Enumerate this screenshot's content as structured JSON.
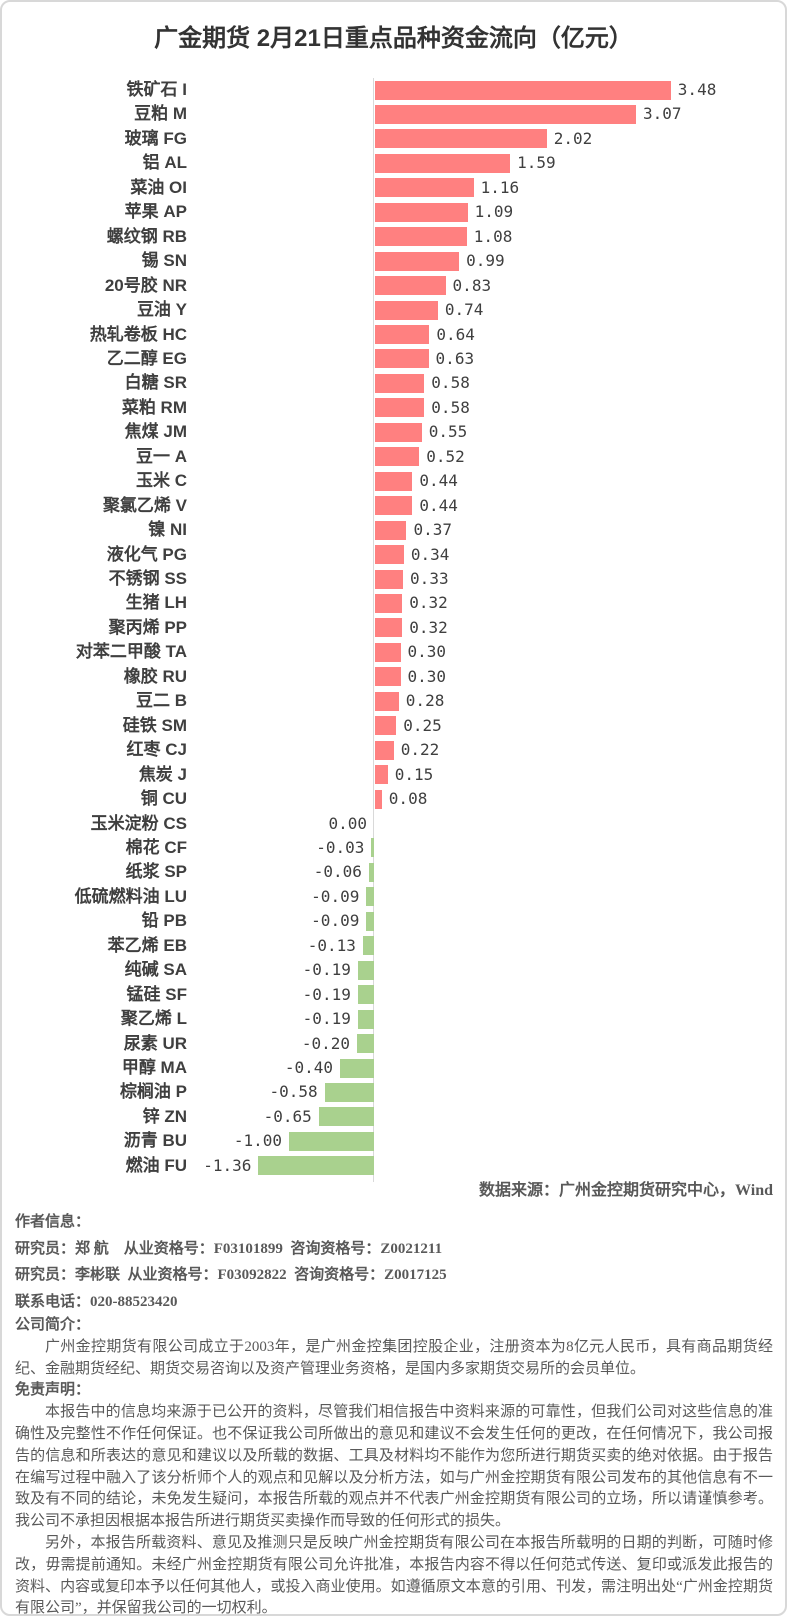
{
  "title": "广金期货 2月21日重点品种资金流向（亿元）",
  "chart_data": {
    "type": "bar",
    "orientation": "horizontal",
    "title": "广金期货 2月21日重点品种资金流向（亿元）",
    "unit": "亿元",
    "positive_color": "#ff8080",
    "negative_color": "#a9d18e",
    "axis_color": "#d9d9d9",
    "xlim": [
      -1.6,
      3.6
    ],
    "grid": false,
    "legend": false,
    "items": [
      {
        "name": "铁矿石",
        "code": "I",
        "value": 3.48
      },
      {
        "name": "豆粕",
        "code": "M",
        "value": 3.07
      },
      {
        "name": "玻璃",
        "code": "FG",
        "value": 2.02
      },
      {
        "name": "铝",
        "code": "AL",
        "value": 1.59
      },
      {
        "name": "菜油",
        "code": "OI",
        "value": 1.16
      },
      {
        "name": "苹果",
        "code": "AP",
        "value": 1.09
      },
      {
        "name": "螺纹钢",
        "code": "RB",
        "value": 1.08
      },
      {
        "name": "锡",
        "code": "SN",
        "value": 0.99
      },
      {
        "name": "20号胶",
        "code": "NR",
        "value": 0.83
      },
      {
        "name": "豆油",
        "code": "Y",
        "value": 0.74
      },
      {
        "name": "热轧卷板",
        "code": "HC",
        "value": 0.64
      },
      {
        "name": "乙二醇",
        "code": "EG",
        "value": 0.63
      },
      {
        "name": "白糖",
        "code": "SR",
        "value": 0.58
      },
      {
        "name": "菜粕",
        "code": "RM",
        "value": 0.58
      },
      {
        "name": "焦煤",
        "code": "JM",
        "value": 0.55
      },
      {
        "name": "豆一",
        "code": "A",
        "value": 0.52
      },
      {
        "name": "玉米",
        "code": "C",
        "value": 0.44
      },
      {
        "name": "聚氯乙烯",
        "code": "V",
        "value": 0.44
      },
      {
        "name": "镍",
        "code": "NI",
        "value": 0.37
      },
      {
        "name": "液化气",
        "code": "PG",
        "value": 0.34
      },
      {
        "name": "不锈钢",
        "code": "SS",
        "value": 0.33
      },
      {
        "name": "生猪",
        "code": "LH",
        "value": 0.32
      },
      {
        "name": "聚丙烯",
        "code": "PP",
        "value": 0.32
      },
      {
        "name": "对苯二甲酸",
        "code": "TA",
        "value": 0.3
      },
      {
        "name": "橡胶",
        "code": "RU",
        "value": 0.3
      },
      {
        "name": "豆二",
        "code": "B",
        "value": 0.28
      },
      {
        "name": "硅铁",
        "code": "SM",
        "value": 0.25
      },
      {
        "name": "红枣",
        "code": "CJ",
        "value": 0.22
      },
      {
        "name": "焦炭",
        "code": "J",
        "value": 0.15
      },
      {
        "name": "铜",
        "code": "CU",
        "value": 0.08
      },
      {
        "name": "玉米淀粉",
        "code": "CS",
        "value": 0.0
      },
      {
        "name": "棉花",
        "code": "CF",
        "value": -0.03
      },
      {
        "name": "纸浆",
        "code": "SP",
        "value": -0.06
      },
      {
        "name": "低硫燃料油",
        "code": "LU",
        "value": -0.09
      },
      {
        "name": "铅",
        "code": "PB",
        "value": -0.09
      },
      {
        "name": "苯乙烯",
        "code": "EB",
        "value": -0.13
      },
      {
        "name": "纯碱",
        "code": "SA",
        "value": -0.19
      },
      {
        "name": "锰硅",
        "code": "SF",
        "value": -0.19
      },
      {
        "name": "聚乙烯",
        "code": "L",
        "value": -0.19
      },
      {
        "name": "尿素",
        "code": "UR",
        "value": -0.2
      },
      {
        "name": "甲醇",
        "code": "MA",
        "value": -0.4
      },
      {
        "name": "棕榈油",
        "code": "P",
        "value": -0.58
      },
      {
        "name": "锌",
        "code": "ZN",
        "value": -0.65
      },
      {
        "name": "沥青",
        "code": "BU",
        "value": -1.0
      },
      {
        "name": "燃油",
        "code": "FU",
        "value": -1.36
      }
    ]
  },
  "source_note": "数据来源：广州金控期货研究中心，Wind",
  "footer": {
    "author_header": "作者信息：",
    "researchers": [
      "研究员：郑 航    从业资格号：F03101899  咨询资格号：Z0021211",
      "研究员：李彬联  从业资格号：F03092822  咨询资格号：Z0017125"
    ],
    "phone": "联系电话：020-88523420",
    "company_header": "公司简介：",
    "company_text": "广州金控期货有限公司成立于2003年，是广州金控集团控股企业，注册资本为8亿元人民币，具有商品期货经纪、金融期货经纪、期货交易咨询以及资产管理业务资格，是国内多家期货交易所的会员单位。",
    "disclaimer_header": "免责声明：",
    "disclaimer_p1": "本报告中的信息均来源于已公开的资料，尽管我们相信报告中资料来源的可靠性，但我们公司对这些信息的准确性及完整性不作任何保证。也不保证我公司所做出的意见和建议不会发生任何的更改，在任何情况下，我公司报告的信息和所表达的意见和建议以及所载的数据、工具及材料均不能作为您所进行期货买卖的绝对依据。由于报告在编写过程中融入了该分析师个人的观点和见解以及分析方法，如与广州金控期货有限公司发布的其他信息有不一致及有不同的结论，未免发生疑问，本报告所载的观点并不代表广州金控期货有限公司的立场，所以请谨慎参考。我公司不承担因根据本报告所进行期货买卖操作而导致的任何形式的损失。",
    "disclaimer_p2": "另外，本报告所载资料、意见及推测只是反映广州金控期货有限公司在本报告所载明的日期的判断，可随时修改，毋需提前通知。未经广州金控期货有限公司允许批准，本报告内容不得以任何范式传送、复印或派发此报告的资料、内容或复印本予以任何其他人，或投入商业使用。如遵循原文本意的引用、刊发，需注明出处“广州金控期货有限公司”，并保留我公司的一切权利。"
  }
}
